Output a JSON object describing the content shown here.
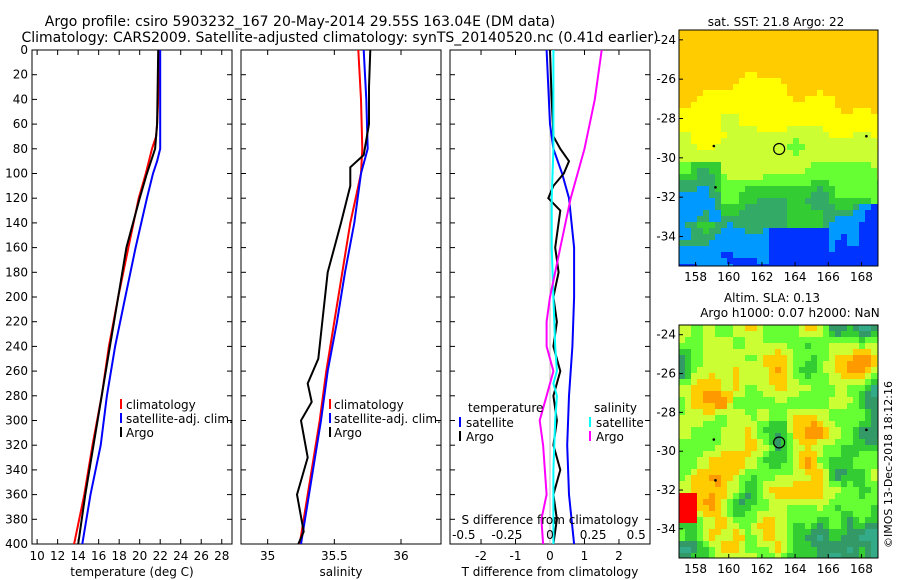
{
  "title_line1": "Argo profile: csiro 5903232_167 20-May-2014 29.55S 163.04E (DM data)",
  "title_line2": "Climatology: CARS2009. Satellite-adjusted climatology: synTS_20140520.nc (0.41d earlier)",
  "colors": {
    "climatology": "#ff0000",
    "satellite": "#0000ff",
    "argo": "#000000",
    "s_climatology": "#ff00ff",
    "s_satellite": "#00ffff"
  },
  "chart_data": [
    {
      "type": "line",
      "title": "",
      "xlabel": "temperature (deg C)",
      "ylabel": "",
      "xlim": [
        9.5,
        29
      ],
      "ylim": [
        400,
        0
      ],
      "xticks": [
        10,
        12,
        14,
        16,
        18,
        20,
        22,
        24,
        26,
        28
      ],
      "xtick_labels": [
        "10",
        "12",
        "14",
        "16",
        "18",
        "20",
        "22",
        "24",
        "26",
        "28"
      ],
      "yticks": [
        0,
        20,
        40,
        60,
        80,
        100,
        120,
        140,
        160,
        180,
        200,
        220,
        240,
        260,
        280,
        300,
        320,
        340,
        360,
        380,
        400
      ],
      "ytick_labels": [
        "0",
        "20",
        "40",
        "60",
        "80",
        "100",
        "120",
        "140",
        "160",
        "180",
        "200",
        "220",
        "240",
        "260",
        "280",
        "300",
        "320",
        "340",
        "360",
        "380",
        "400"
      ],
      "legend": [
        "climatology",
        "satellite-adj. clim.",
        "Argo"
      ],
      "series": [
        {
          "name": "climatology",
          "color": "#ff0000",
          "depth": [
            0,
            40,
            60,
            70,
            80,
            100,
            120,
            160,
            200,
            240,
            280,
            320,
            360,
            400
          ],
          "values": [
            21.9,
            21.8,
            21.7,
            21.6,
            21.2,
            20.6,
            19.9,
            18.9,
            17.9,
            17.0,
            16.3,
            15.4,
            14.6,
            13.6
          ]
        },
        {
          "name": "satellite-adj. clim.",
          "color": "#0000ff",
          "depth": [
            0,
            60,
            80,
            90,
            100,
            120,
            160,
            200,
            240,
            280,
            320,
            360,
            400
          ],
          "values": [
            22.0,
            22.0,
            22.0,
            21.7,
            21.3,
            20.7,
            19.6,
            18.6,
            17.6,
            16.8,
            16.2,
            15.2,
            14.4
          ]
        },
        {
          "name": "Argo",
          "color": "#000000",
          "depth": [
            0,
            60,
            80,
            90,
            100,
            120,
            160,
            200,
            240,
            280,
            320,
            360,
            400
          ],
          "values": [
            21.8,
            21.7,
            21.5,
            21.1,
            20.7,
            20.0,
            18.7,
            17.9,
            17.1,
            16.3,
            15.5,
            14.7,
            14.0
          ]
        }
      ]
    },
    {
      "type": "line",
      "title": "",
      "xlabel": "salinity",
      "ylabel": "",
      "xlim": [
        34.8,
        36.3
      ],
      "ylim": [
        400,
        0
      ],
      "xticks": [
        35,
        35.5,
        36
      ],
      "xtick_labels": [
        "35",
        "35.5",
        "36"
      ],
      "legend": [
        "climatology",
        "satellite-adj. clim.",
        "Argo"
      ],
      "series": [
        {
          "name": "climatology",
          "color": "#ff0000",
          "depth": [
            0,
            40,
            80,
            100,
            140,
            180,
            220,
            260,
            300,
            340,
            380,
            400
          ],
          "values": [
            35.68,
            35.7,
            35.71,
            35.7,
            35.62,
            35.56,
            35.5,
            35.44,
            35.39,
            35.33,
            35.27,
            35.24
          ]
        },
        {
          "name": "satellite-adj. clim.",
          "color": "#0000ff",
          "depth": [
            0,
            40,
            80,
            100,
            140,
            180,
            220,
            260,
            300,
            340,
            380,
            400
          ],
          "values": [
            35.72,
            35.74,
            35.75,
            35.7,
            35.65,
            35.58,
            35.52,
            35.45,
            35.4,
            35.34,
            35.28,
            35.25
          ]
        },
        {
          "name": "Argo",
          "color": "#000000",
          "depth": [
            0,
            30,
            60,
            85,
            95,
            110,
            140,
            180,
            200,
            220,
            250,
            270,
            285,
            300,
            330,
            360,
            390,
            400
          ],
          "values": [
            35.77,
            35.76,
            35.76,
            35.72,
            35.62,
            35.62,
            35.55,
            35.45,
            35.43,
            35.41,
            35.38,
            35.3,
            35.33,
            35.25,
            35.3,
            35.22,
            35.27,
            35.23
          ]
        }
      ]
    },
    {
      "type": "line",
      "title": "",
      "xlabel": "T difference from climatology",
      "xlabel_top": "S difference from climatology",
      "xlim": [
        -2.9,
        2.9
      ],
      "ylim": [
        400,
        0
      ],
      "xticks": [
        -2,
        -1,
        0,
        1,
        2
      ],
      "xtick_labels": [
        "-2",
        "-1",
        "0",
        "1",
        "2"
      ],
      "sticks_pos": [
        -2.5,
        -1.25,
        0,
        1.25,
        2.5
      ],
      "sticks_labels": [
        "-0.5",
        "-0.25",
        "0",
        "0.25",
        "0.5"
      ],
      "legend_left_title": "temperature",
      "legend_right_title": "salinity",
      "legend": [
        "satellite",
        "Argo",
        "satellite",
        "Argo"
      ],
      "series": [
        {
          "name": "satellite",
          "group": "temperature",
          "color": "#0000ff",
          "depth": [
            0,
            60,
            80,
            100,
            120,
            160,
            200,
            240,
            280,
            320,
            360,
            400
          ],
          "values": [
            -0.1,
            0.0,
            0.1,
            0.35,
            0.55,
            0.7,
            0.7,
            0.65,
            0.55,
            0.5,
            0.55,
            0.7
          ]
        },
        {
          "name": "Argo",
          "group": "temperature",
          "color": "#000000",
          "depth": [
            0,
            40,
            70,
            80,
            90,
            100,
            110,
            120,
            130,
            160,
            180,
            200,
            220,
            240,
            260,
            280,
            300,
            320,
            340,
            360,
            380,
            400
          ],
          "values": [
            0.0,
            0.05,
            0.1,
            0.3,
            0.55,
            0.4,
            0.1,
            -0.05,
            0.3,
            0.15,
            0.25,
            0.1,
            0.2,
            0.1,
            0.3,
            0.1,
            0.2,
            0.1,
            0.3,
            0.1,
            0.2,
            0.1
          ]
        },
        {
          "name": "satellite",
          "group": "salinity",
          "color": "#00ffff",
          "depth": [
            0,
            80,
            120,
            160,
            200,
            240,
            260,
            270,
            280,
            300,
            340,
            400
          ],
          "values": [
            0.1,
            0.1,
            0.05,
            0.05,
            0.1,
            0.15,
            0.2,
            0.1,
            0.2,
            0.15,
            0.1,
            0.1
          ]
        },
        {
          "name": "Argo",
          "group": "salinity",
          "color": "#ff00ff",
          "depth": [
            0,
            40,
            80,
            120,
            160,
            200,
            220,
            240,
            260,
            280,
            300,
            320,
            360,
            380,
            400
          ],
          "values": [
            1.5,
            1.3,
            1.0,
            0.6,
            0.3,
            0.0,
            -0.1,
            -0.1,
            0.1,
            -0.1,
            -0.3,
            -0.2,
            -0.1,
            -0.25,
            -0.2
          ]
        }
      ]
    },
    {
      "type": "heatmap",
      "title": "sat. SST: 21.8 Argo: 22",
      "xlim": [
        157,
        169
      ],
      "ylim": [
        -35.5,
        -23.5
      ],
      "xticks": [
        158,
        160,
        162,
        164,
        166,
        168
      ],
      "xtick_labels": [
        "158",
        "160",
        "162",
        "164",
        "166",
        "168"
      ],
      "yticks": [
        -24,
        -26,
        -28,
        -30,
        -32,
        -34
      ],
      "ytick_labels": [
        "-24",
        "-26",
        "-28",
        "-30",
        "-32",
        "-34"
      ],
      "marker_lonlat": [
        163.04,
        -29.55
      ]
    },
    {
      "type": "heatmap",
      "title_line1": "Altim. SLA: 0.13",
      "title_line2": "Argo h1000: 0.07 h2000: NaN",
      "xlim": [
        157,
        169
      ],
      "ylim": [
        -35.5,
        -23.5
      ],
      "xticks": [
        158,
        160,
        162,
        164,
        166,
        168
      ],
      "xtick_labels": [
        "158",
        "160",
        "162",
        "164",
        "166",
        "168"
      ],
      "yticks": [
        -24,
        -26,
        -28,
        -30,
        -32,
        -34
      ],
      "ytick_labels": [
        "-24",
        "-26",
        "-28",
        "-30",
        "-32",
        "-34"
      ],
      "marker_lonlat": [
        163.04,
        -29.55
      ]
    }
  ],
  "credit": "©IMOS 13-Dec-2018 18:12:16"
}
